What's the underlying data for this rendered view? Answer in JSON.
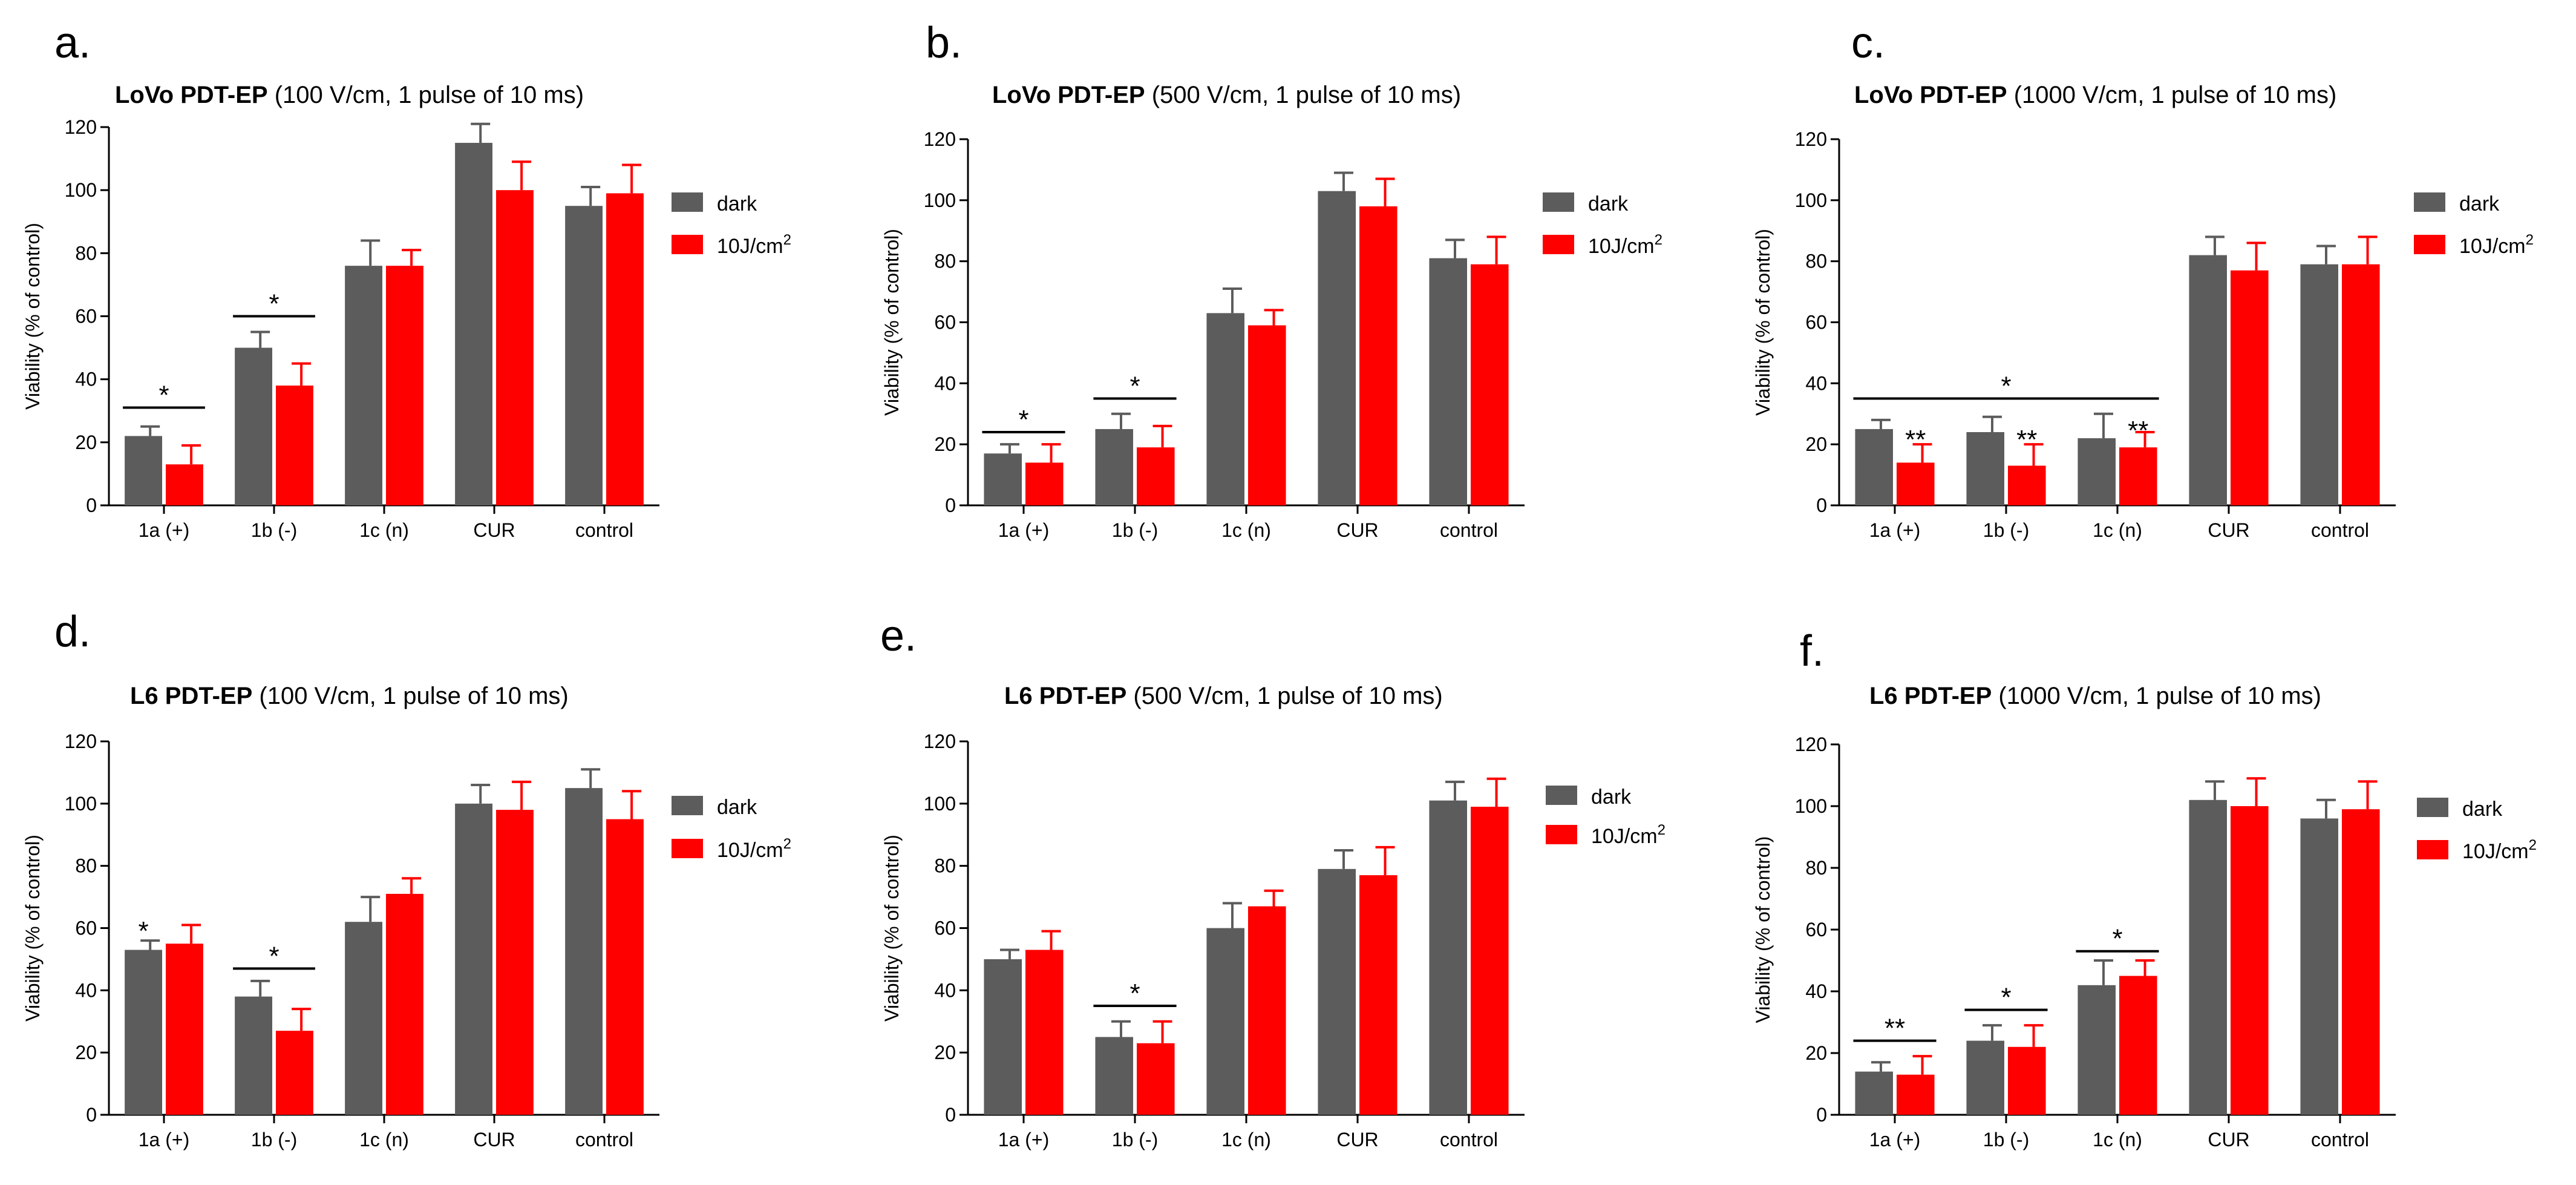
{
  "colors": {
    "dark": "#5c5c5c",
    "light": "#ff0000",
    "axis": "#000000"
  },
  "chart_data": [
    {
      "type": "bar",
      "letter": "a.",
      "title_bold": "LoVo PDT-EP",
      "title_rest": " (100 V/cm, 1 pulse of 10 ms)",
      "ylabel": "Viability (% of control)",
      "ylim": [
        0,
        120
      ],
      "yticks": [
        "0",
        "20",
        "40",
        "60",
        "80",
        "100",
        "120"
      ],
      "categories": [
        "1a (+)",
        "1b (-)",
        "1c (n)",
        "CUR",
        "control"
      ],
      "series": [
        {
          "name": "dark",
          "values": [
            22,
            50,
            76,
            115,
            95
          ],
          "errors": [
            3,
            5,
            8,
            6,
            6
          ]
        },
        {
          "name": "10J/cm",
          "name_sup": "2",
          "values": [
            13,
            38,
            76,
            100,
            99
          ],
          "errors": [
            6,
            7,
            5,
            9,
            9
          ]
        }
      ],
      "significance": [
        {
          "text": "*",
          "line_y": 31,
          "text_y": 31,
          "from": 0,
          "to": 1
        },
        {
          "text": "*",
          "line_y": 60,
          "text_y": 60,
          "from": 0,
          "to": 1,
          "cat": 1
        }
      ]
    },
    {
      "type": "bar",
      "letter": "b.",
      "title_bold": "LoVo PDT-EP",
      "title_rest": " (500 V/cm, 1 pulse of 10 ms)",
      "ylabel": "Viability (% of control)",
      "ylim": [
        0,
        120
      ],
      "yticks": [
        "0",
        "20",
        "40",
        "60",
        "80",
        "100",
        "120"
      ],
      "categories": [
        "1a (+)",
        "1b (-)",
        "1c (n)",
        "CUR",
        "control"
      ],
      "series": [
        {
          "name": "dark",
          "values": [
            17,
            25,
            63,
            103,
            81
          ],
          "errors": [
            3,
            5,
            8,
            6,
            6
          ]
        },
        {
          "name": "10J/cm",
          "name_sup": "2",
          "values": [
            14,
            19,
            59,
            98,
            79
          ],
          "errors": [
            6,
            7,
            5,
            9,
            9
          ]
        }
      ],
      "significance": [
        {
          "text": "*",
          "line_y": 24,
          "text_y": 24,
          "cat": 0
        },
        {
          "text": "*",
          "line_y": 35,
          "text_y": 35,
          "cat": 1
        }
      ]
    },
    {
      "type": "bar",
      "letter": "c.",
      "title_bold": "LoVo PDT-EP",
      "title_rest": " (1000 V/cm, 1 pulse of 10 ms)",
      "ylabel": "Viability (% of control)",
      "ylim": [
        0,
        120
      ],
      "yticks": [
        "0",
        "20",
        "40",
        "60",
        "80",
        "100",
        "120"
      ],
      "categories": [
        "1a (+)",
        "1b (-)",
        "1c (n)",
        "CUR",
        "control"
      ],
      "series": [
        {
          "name": "dark",
          "values": [
            25,
            24,
            22,
            82,
            79
          ],
          "errors": [
            3,
            5,
            8,
            6,
            6
          ]
        },
        {
          "name": "10J/cm",
          "name_sup": "2",
          "values": [
            14,
            13,
            19,
            77,
            79
          ],
          "errors": [
            6,
            7,
            5,
            9,
            9
          ]
        }
      ],
      "significance": [
        {
          "text": "*",
          "line_y": 35,
          "text_y": 35,
          "span": [
            0,
            2
          ]
        },
        {
          "text": "**",
          "bar_text": true,
          "cat": 0,
          "text_y": 21
        },
        {
          "text": "**",
          "bar_text": true,
          "cat": 1,
          "text_y": 21
        },
        {
          "text": "**",
          "bar_text": true,
          "cat": 2,
          "text_y": 24
        }
      ]
    },
    {
      "type": "bar",
      "letter": "d.",
      "title_bold": "L6 PDT-EP",
      "title_rest": " (100 V/cm, 1 pulse of 10 ms)",
      "ylabel": "Viability (% of control)",
      "ylim": [
        0,
        120
      ],
      "yticks": [
        "0",
        "20",
        "40",
        "60",
        "80",
        "100",
        "120"
      ],
      "categories": [
        "1a (+)",
        "1b (-)",
        "1c (n)",
        "CUR",
        "control"
      ],
      "series": [
        {
          "name": "dark",
          "values": [
            53,
            38,
            62,
            100,
            105
          ],
          "errors": [
            3,
            5,
            8,
            6,
            6
          ]
        },
        {
          "name": "10J/cm",
          "name_sup": "2",
          "values": [
            55,
            27,
            71,
            98,
            95
          ],
          "errors": [
            6,
            7,
            5,
            9,
            9
          ]
        }
      ],
      "significance": [
        {
          "text": "*",
          "dark_text": true,
          "cat": 0,
          "text_y": 57
        },
        {
          "text": "*",
          "line_y": 47,
          "text_y": 47,
          "cat": 1
        }
      ]
    },
    {
      "type": "bar",
      "letter": "e.",
      "title_bold": "L6 PDT-EP",
      "title_rest": " (500 V/cm, 1 pulse of 10 ms)",
      "ylabel": "Viability (% of control)",
      "ylim": [
        0,
        120
      ],
      "yticks": [
        "0",
        "20",
        "40",
        "60",
        "80",
        "100",
        "120"
      ],
      "categories": [
        "1a (+)",
        "1b (-)",
        "1c (n)",
        "CUR",
        "control"
      ],
      "series": [
        {
          "name": "dark",
          "values": [
            50,
            25,
            60,
            79,
            101
          ],
          "errors": [
            3,
            5,
            8,
            6,
            6
          ]
        },
        {
          "name": "10J/cm",
          "name_sup": "2",
          "values": [
            53,
            23,
            67,
            77,
            99
          ],
          "errors": [
            6,
            7,
            5,
            9,
            9
          ]
        }
      ],
      "significance": [
        {
          "text": "*",
          "line_y": 35,
          "text_y": 35,
          "cat": 1
        }
      ]
    },
    {
      "type": "bar",
      "letter": "f.",
      "title_bold": "L6 PDT-EP",
      "title_rest": " (1000 V/cm, 1 pulse of 10 ms)",
      "ylabel": "Viability (% of control)",
      "ylim": [
        0,
        120
      ],
      "yticks": [
        "0",
        "20",
        "40",
        "60",
        "80",
        "100",
        "120"
      ],
      "categories": [
        "1a (+)",
        "1b (-)",
        "1c (n)",
        "CUR",
        "control"
      ],
      "series": [
        {
          "name": "dark",
          "values": [
            14,
            24,
            42,
            102,
            96
          ],
          "errors": [
            3,
            5,
            8,
            6,
            6
          ]
        },
        {
          "name": "10J/cm",
          "name_sup": "2",
          "values": [
            13,
            22,
            45,
            100,
            99
          ],
          "errors": [
            6,
            7,
            5,
            9,
            9
          ]
        }
      ],
      "significance": [
        {
          "text": "**",
          "line_y": 24,
          "text_y": 24,
          "cat": 0
        },
        {
          "text": "*",
          "line_y": 34,
          "text_y": 34,
          "cat": 1
        },
        {
          "text": "*",
          "line_y": 53,
          "text_y": 53,
          "cat": 2
        }
      ]
    }
  ]
}
